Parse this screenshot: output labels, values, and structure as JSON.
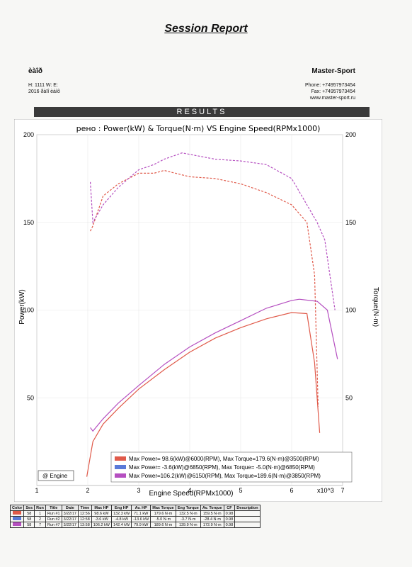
{
  "header": {
    "title": "Session Report",
    "client_name": "èàîð",
    "client_line1": "H:  1111   W:     E:",
    "client_line2": "2016 ðàïî èàìõ",
    "company_name": "Master-Sport",
    "phone": "Phone: +74957973454",
    "fax": "Fax:    +74957973454",
    "website": "www.master-sport.ru",
    "results_label": "RESULTS"
  },
  "chart_data": {
    "type": "line",
    "title": "рено : Power(kW) & Torque(N·m) VS Engine Speed(RPMx1000)",
    "xlabel": "Engine Speed(RPMx1000)",
    "x_unit_label": "x10^3",
    "ylabel_left": "Power(kW)",
    "ylabel_right": "Torque(N·m)",
    "xlim": [
      1,
      7
    ],
    "ylim": [
      0,
      200
    ],
    "x_ticks": [
      "1",
      "2",
      "3",
      "4",
      "5",
      "6",
      "7"
    ],
    "y_ticks": [
      "50",
      "100",
      "150",
      "200"
    ],
    "colors": {
      "run1": "#e05a4a",
      "run2": "#5a7ad8",
      "run7": "#b54fc0"
    },
    "series": [
      {
        "name": "Max Power= 98.6(kW)@6000(RPM), Max Torque=179.6(N·m)@3500(RPM)",
        "color": "#e05a4a",
        "power": {
          "x": [
            1.98,
            2.1,
            2.3,
            2.6,
            3.0,
            3.5,
            4.0,
            4.5,
            5.0,
            5.5,
            6.0,
            6.3,
            6.45,
            6.55
          ],
          "y": [
            5,
            25,
            35,
            44,
            55,
            66,
            76,
            84,
            90,
            95,
            98.6,
            98,
            70,
            30
          ]
        },
        "torque": {
          "x": [
            2.05,
            2.1,
            2.3,
            2.6,
            3.0,
            3.3,
            3.5,
            4.0,
            4.5,
            5.0,
            5.5,
            6.0,
            6.3,
            6.45,
            6.52
          ],
          "y": [
            145,
            148,
            165,
            172,
            178,
            178,
            179.6,
            176,
            175,
            172,
            167,
            160,
            150,
            120,
            45
          ]
        }
      },
      {
        "name": "Max Power= -3.6(kW)@6850(RPM), Max Torque= -5.0(N·m)@6850(RPM)",
        "color": "#5a7ad8",
        "power": {
          "x": [],
          "y": []
        },
        "torque": {
          "x": [],
          "y": []
        }
      },
      {
        "name": "Max Power=106.2(kW)@6150(RPM), Max Torque=189.6(N·m)@3850(RPM)",
        "color": "#b54fc0",
        "power": {
          "x": [
            2.05,
            2.1,
            2.3,
            2.6,
            3.0,
            3.5,
            4.0,
            4.5,
            5.0,
            5.5,
            6.0,
            6.15,
            6.5,
            6.7,
            6.9
          ],
          "y": [
            33,
            31,
            38,
            47,
            57,
            69,
            79,
            87,
            94,
            101,
            105.5,
            106.2,
            105,
            100,
            72
          ]
        },
        "torque": {
          "x": [
            2.05,
            2.1,
            2.3,
            2.6,
            3.0,
            3.3,
            3.5,
            3.85,
            4.5,
            5.0,
            5.5,
            6.0,
            6.3,
            6.5,
            6.65,
            6.75,
            6.85
          ],
          "y": [
            173,
            150,
            160,
            170,
            180,
            183,
            186,
            189.6,
            186,
            185,
            183,
            175,
            160,
            150,
            140,
            120,
            100
          ]
        }
      }
    ],
    "legend_button": "@ Engine"
  },
  "table": {
    "headers": [
      "Color",
      "Ses",
      "Run",
      "Title",
      "Date",
      "Time",
      "Max HP",
      "Eng HP",
      "Av. HP",
      "Max Torque",
      "Eng Torque",
      "Av. Torque",
      "CF",
      "Description"
    ],
    "rows": [
      {
        "color": "#e05a4a",
        "cells": [
          "58",
          "1",
          "Run #1",
          "3/22/17",
          "12:56",
          "98.6 kW",
          "132.3 kW",
          "71.1 kW",
          "179.6 N·m",
          "132.5 N·m",
          "159.5 N·m",
          "0.98",
          ""
        ]
      },
      {
        "color": "#5a7ad8",
        "cells": [
          "58",
          "2",
          "Run #2",
          "3/22/17",
          "12:58",
          "-3.6 kW",
          "-4.8 kW",
          "-13.6 kW",
          "-5.0 N·m",
          "-3.7 N·m",
          "-28.4 N·m",
          "0.98",
          ""
        ]
      },
      {
        "color": "#b54fc0",
        "cells": [
          "58",
          "7",
          "Run #7",
          "3/22/17",
          "13:58",
          "106.2 kW",
          "142.4 kW",
          "79.9 kW",
          "189.6 N·m",
          "139.9 N·m",
          "172.9 N·m",
          "0.98",
          ""
        ]
      }
    ]
  }
}
